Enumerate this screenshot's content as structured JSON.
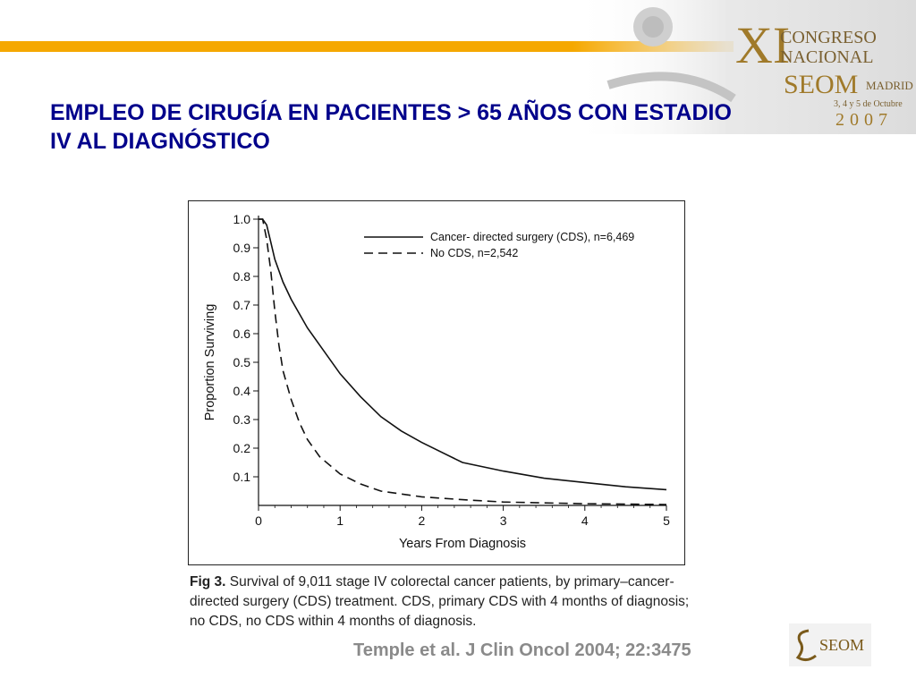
{
  "slide": {
    "title_line1": "EMPLEO DE CIRUGÍA EN PACIENTES > 65 AÑOS CON ESTADIO",
    "title_line2": "IV AL DIAGNÓSTICO",
    "citation": "Temple et al. J Clin Oncol 2004; 22:3475",
    "caption_label": "Fig 3.",
    "caption_text": "Survival of 9,011 stage IV colorectal cancer patients, by primary–cancer-directed surgery (CDS) treatment. CDS, primary CDS with 4 months of diagnosis; no CDS, no CDS within 4 months of diagnosis."
  },
  "logos": {
    "congress": {
      "numeral": "XI",
      "line1": "CONGRESO",
      "line2": "NACIONAL",
      "org": "SEOM",
      "city": "MADRID",
      "dates": "3, 4 y 5 de Octubre",
      "year": "2007",
      "accent": "#a07a2a"
    },
    "seom": {
      "text": "SEOM",
      "accent": "#7a5a1a"
    }
  },
  "colors": {
    "title": "#00008b",
    "bar": "#f5a800",
    "citation": "#8a8a8a"
  },
  "chart_data": {
    "type": "line",
    "xlabel": "Years From Diagnosis",
    "ylabel": "Proportion Surviving",
    "xlim": [
      0,
      5
    ],
    "ylim": [
      0,
      1.0
    ],
    "x_ticks": [
      "0",
      "1",
      "2",
      "3",
      "4",
      "5"
    ],
    "y_ticks": [
      "0.1",
      "0.2",
      "0.3",
      "0.4",
      "0.5",
      "0.6",
      "0.7",
      "0.8",
      "0.9",
      "1.0"
    ],
    "legend_position": "top-right",
    "series": [
      {
        "name": "Cancer- directed surgery (CDS), n=6,469",
        "style": "solid",
        "x": [
          0,
          0.05,
          0.1,
          0.15,
          0.2,
          0.3,
          0.4,
          0.5,
          0.6,
          0.75,
          1.0,
          1.25,
          1.5,
          1.75,
          2.0,
          2.5,
          3.0,
          3.5,
          4.0,
          4.5,
          5.0
        ],
        "y": [
          1.0,
          1.0,
          0.98,
          0.92,
          0.86,
          0.78,
          0.72,
          0.67,
          0.62,
          0.56,
          0.46,
          0.38,
          0.31,
          0.26,
          0.22,
          0.15,
          0.12,
          0.095,
          0.08,
          0.065,
          0.055
        ]
      },
      {
        "name": "No CDS, n=2,542",
        "style": "dashed",
        "x": [
          0,
          0.05,
          0.1,
          0.15,
          0.2,
          0.25,
          0.3,
          0.4,
          0.5,
          0.6,
          0.75,
          1.0,
          1.25,
          1.5,
          2.0,
          2.5,
          3.0,
          4.0,
          5.0
        ],
        "y": [
          1.0,
          1.0,
          0.93,
          0.82,
          0.68,
          0.56,
          0.47,
          0.37,
          0.29,
          0.23,
          0.17,
          0.11,
          0.075,
          0.05,
          0.03,
          0.02,
          0.012,
          0.006,
          0.003
        ]
      }
    ]
  }
}
